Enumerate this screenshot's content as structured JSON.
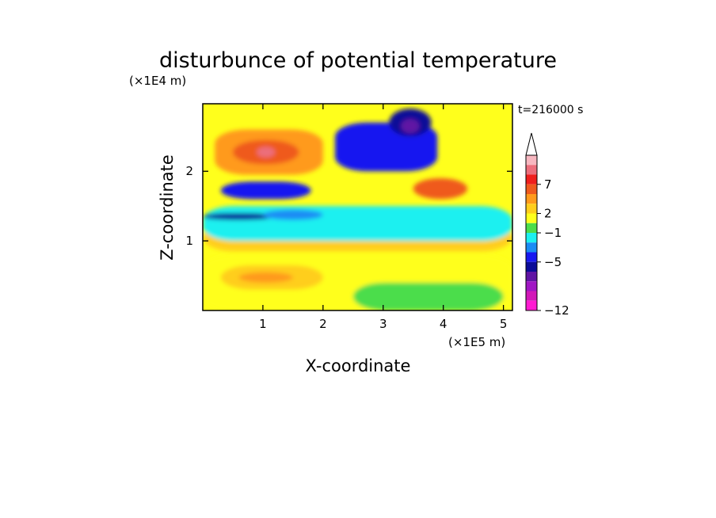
{
  "chart_data": {
    "type": "heatmap",
    "title": "disturbunce of potential temperature",
    "xlabel": "X-coordinate",
    "ylabel": "Z-coordinate",
    "x_unit": "(×1E5 m)",
    "y_unit": "(×1E4 m)",
    "time_label": "t=216000 s",
    "xlim": [
      0,
      5.15
    ],
    "ylim": [
      0,
      2.97
    ],
    "x_ticks": [
      "1",
      "2",
      "3",
      "4",
      "5"
    ],
    "y_ticks": [
      "1",
      "2"
    ],
    "colorbar": {
      "labels": [
        "7",
        "2",
        "−1",
        "−5",
        "−12"
      ],
      "colors": [
        "#f7b7c0",
        "#ec6e7c",
        "#ef1f1d",
        "#ef5a1e",
        "#ff9a1c",
        "#ffce1c",
        "#ffff1c",
        "#4cdd4b",
        "#1cf0f0",
        "#1a8cf4",
        "#1818f0",
        "#0b0b98",
        "#6014a4",
        "#a016c4",
        "#d218b8",
        "#ff1cd2"
      ]
    },
    "regions": [
      {
        "level": 2,
        "x": [
          0.0,
          5.15
        ],
        "z": [
          0.85,
          1.25
        ]
      },
      {
        "level": -1,
        "x": [
          0.0,
          5.15
        ],
        "z": [
          1.0,
          1.5
        ]
      },
      {
        "level": 1,
        "x": [
          0.0,
          5.15
        ],
        "z": [
          0.0,
          0.8
        ]
      },
      {
        "level": 2,
        "x": [
          0.3,
          2.0
        ],
        "z": [
          0.3,
          0.65
        ]
      },
      {
        "level": 3,
        "x": [
          0.6,
          1.5
        ],
        "z": [
          0.4,
          0.55
        ]
      },
      {
        "level": 0,
        "x": [
          2.5,
          5.0
        ],
        "z": [
          0.0,
          0.4
        ]
      },
      {
        "level": 4,
        "x": [
          0.2,
          2.0
        ],
        "z": [
          1.95,
          2.6
        ]
      },
      {
        "level": 6,
        "x": [
          0.5,
          1.6
        ],
        "z": [
          2.1,
          2.45
        ]
      },
      {
        "level": 8,
        "x": [
          0.9,
          1.2
        ],
        "z": [
          2.2,
          2.35
        ]
      },
      {
        "level": -4,
        "x": [
          0.3,
          1.8
        ],
        "z": [
          1.6,
          1.85
        ]
      },
      {
        "level": -5,
        "x": [
          0.0,
          1.2
        ],
        "z": [
          1.3,
          1.4
        ]
      },
      {
        "level": -3,
        "x": [
          1.0,
          2.0
        ],
        "z": [
          1.3,
          1.45
        ]
      },
      {
        "level": -4,
        "x": [
          2.2,
          3.9
        ],
        "z": [
          2.0,
          2.7
        ]
      },
      {
        "level": -5,
        "x": [
          3.1,
          3.8
        ],
        "z": [
          2.5,
          2.9
        ]
      },
      {
        "level": -7,
        "x": [
          3.3,
          3.6
        ],
        "z": [
          2.55,
          2.75
        ]
      },
      {
        "level": 5,
        "x": [
          3.5,
          4.4
        ],
        "z": [
          1.6,
          1.9
        ]
      },
      {
        "level": 6,
        "x": [
          3.7,
          4.3
        ],
        "z": [
          1.7,
          1.85
        ]
      }
    ]
  }
}
